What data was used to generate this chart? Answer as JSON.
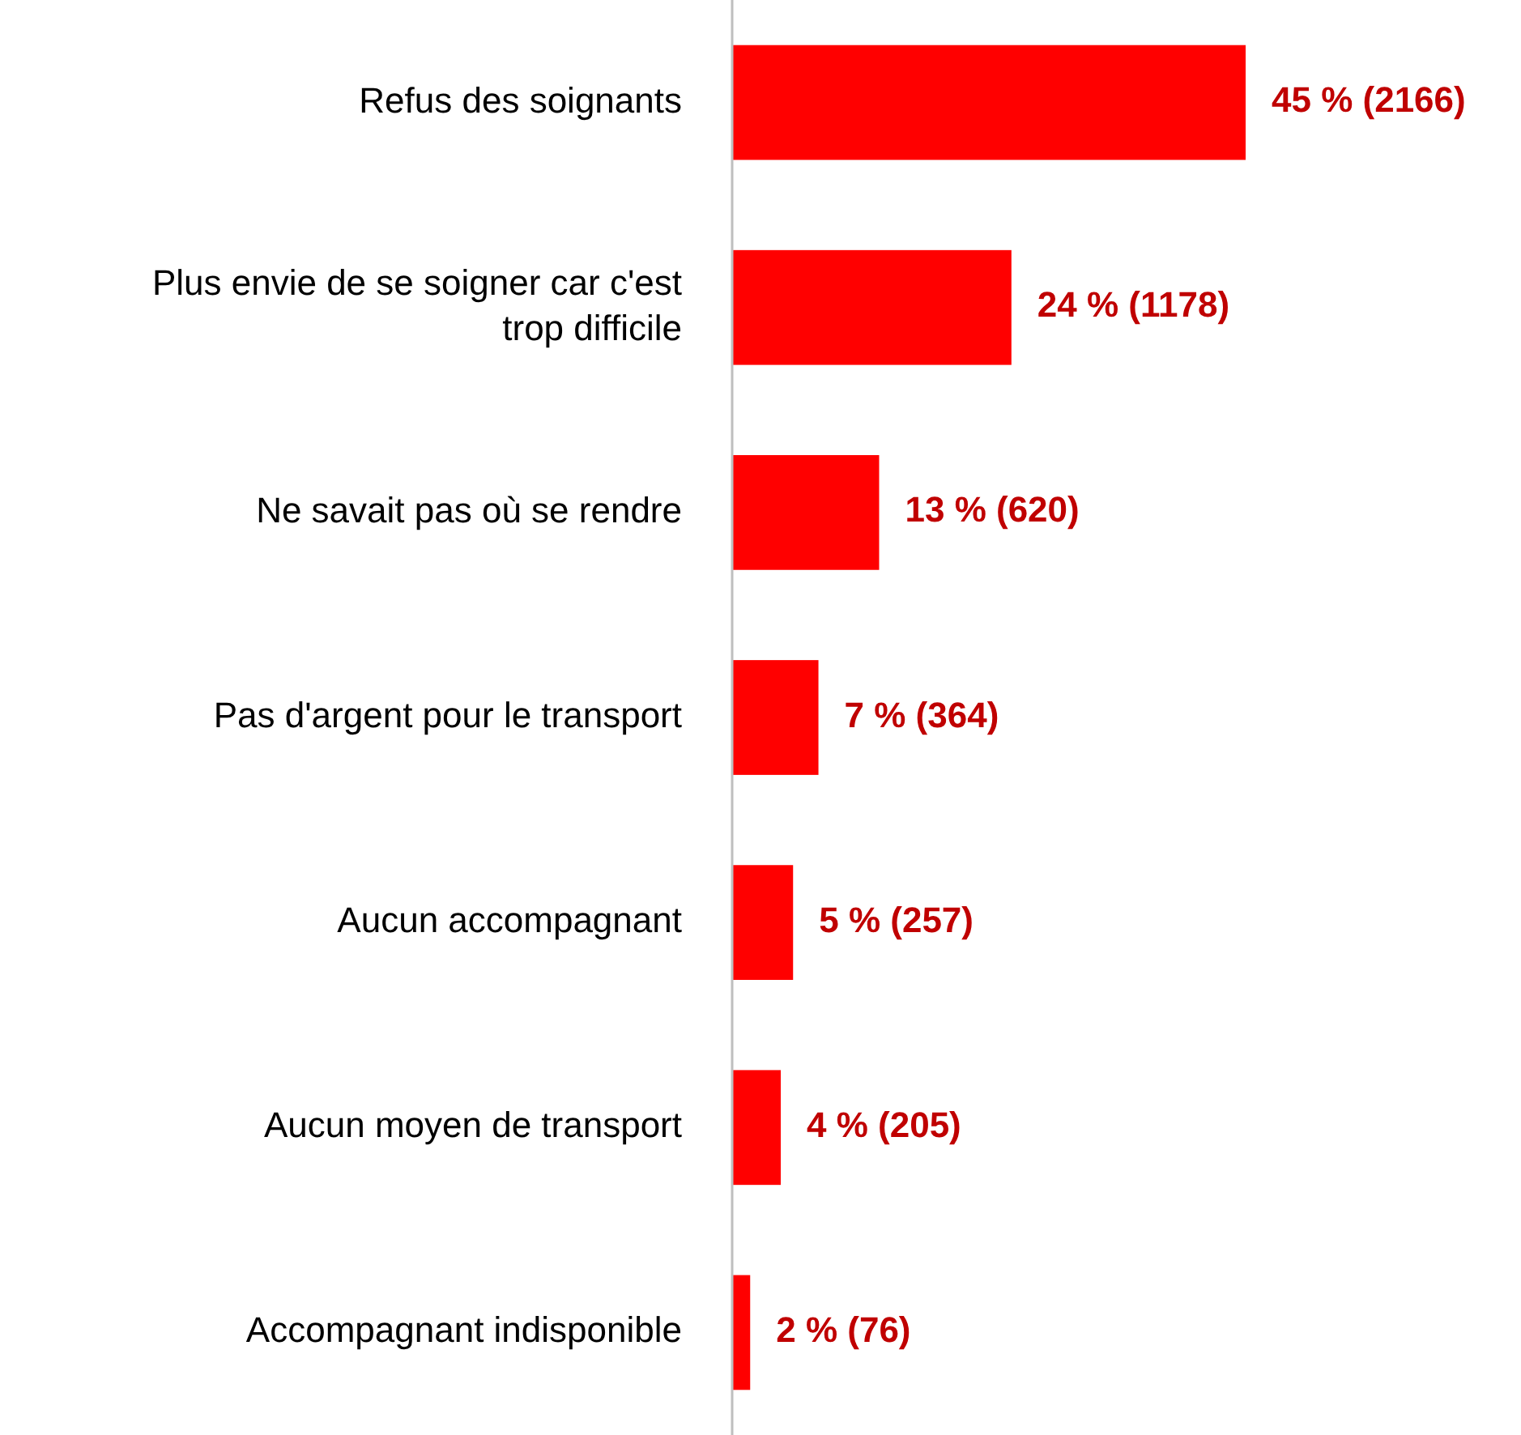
{
  "chart_data": {
    "type": "bar",
    "orientation": "horizontal",
    "categories": [
      "Refus des soignants",
      "Plus envie de se soigner car c'est trop difficile",
      "Ne savait pas où se rendre",
      "Pas d'argent pour le transport",
      "Aucun accompagnant",
      "Aucun moyen de transport",
      "Accompagnant indisponible"
    ],
    "values": [
      2166,
      1178,
      620,
      364,
      257,
      205,
      76
    ],
    "value_labels": [
      "45 % (2166)",
      "24 % (1178)",
      "13 % (620)",
      "7 % (364)",
      "5 % (257)",
      "4 % (205)",
      "2 % (76)"
    ],
    "color": "#ff0000"
  }
}
